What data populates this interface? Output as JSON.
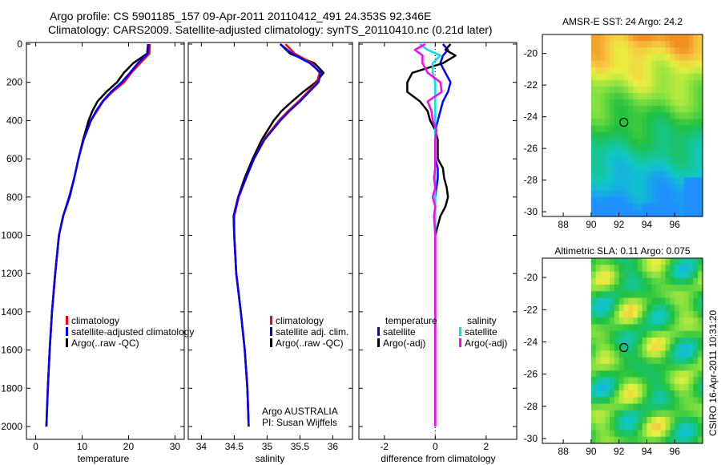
{
  "header": {
    "line1": "Argo profile: CS 5901185_157 09-Apr-2011 20110412_491 24.353S 92.346E",
    "line2": "Climatology: CARS2009. Satellite-adjusted climatology: synTS_20110410.nc (0.21d later)"
  },
  "colors": {
    "climatology": "#ff0000",
    "satellite": "#0000ff",
    "argo": "#000000",
    "salinity_satellite": "#00e5e5",
    "salinity_argo": "#ff00ff"
  },
  "chart_data": [
    {
      "type": "line",
      "xlabel": "temperature",
      "xlim": [
        -2,
        32
      ],
      "xticks": [
        "0",
        "10",
        "20",
        "30"
      ],
      "ylim": [
        2000,
        0
      ],
      "yticks": [
        "0",
        "200",
        "400",
        "600",
        "800",
        "1000",
        "1200",
        "1400",
        "1600",
        "1800",
        "2000"
      ],
      "legend": [
        "climatology",
        "satellite-adjusted climatology",
        "Argo(..raw -QC)"
      ],
      "depth": [
        0,
        50,
        100,
        150,
        200,
        250,
        300,
        350,
        400,
        500,
        600,
        700,
        800,
        900,
        1000,
        1200,
        1400,
        1600,
        1800,
        2000
      ],
      "series": [
        {
          "name": "climatology",
          "values": [
            24.6,
            24.5,
            22.5,
            20.6,
            19.0,
            16.5,
            14.5,
            13.2,
            11.9,
            10.3,
            9.2,
            8.3,
            7.2,
            5.9,
            5.0,
            4.2,
            3.5,
            3.0,
            2.6,
            2.3
          ]
        },
        {
          "name": "satellite-adjusted climatology",
          "values": [
            24.3,
            24.1,
            22.0,
            20.3,
            18.5,
            16.2,
            14.4,
            13.0,
            11.9,
            10.3,
            9.2,
            8.3,
            7.2,
            5.9,
            5.0,
            4.2,
            3.5,
            3.0,
            2.6,
            2.3
          ]
        },
        {
          "name": "Argo(..raw -QC)",
          "values": [
            24.2,
            24.0,
            21.0,
            19.0,
            17.5,
            15.2,
            13.3,
            12.2,
            11.4,
            10.2,
            9.2,
            8.3,
            7.3,
            5.9,
            5.0,
            4.2,
            3.5,
            3.0,
            2.6,
            2.3
          ]
        }
      ]
    },
    {
      "type": "line",
      "xlabel": "salinity",
      "xlim": [
        33.8,
        36.3
      ],
      "xticks": [
        "34",
        "34.5",
        "35",
        "35.5",
        "36"
      ],
      "ylim": [
        2000,
        0
      ],
      "legend": [
        "climatology",
        "satellite adj. clim.",
        "Argo(..raw -QC)"
      ],
      "annotation": [
        "Argo AUSTRALIA",
        "PI: Susan Wijffels"
      ],
      "depth": [
        0,
        50,
        100,
        150,
        200,
        250,
        300,
        350,
        400,
        500,
        600,
        700,
        800,
        900,
        1000,
        1200,
        1400,
        1600,
        1800,
        2000
      ],
      "series": [
        {
          "name": "climatology",
          "values": [
            35.28,
            35.42,
            35.68,
            35.8,
            35.76,
            35.62,
            35.48,
            35.32,
            35.18,
            34.95,
            34.8,
            34.68,
            34.57,
            34.5,
            34.5,
            34.53,
            34.6,
            34.66,
            34.7,
            34.72
          ]
        },
        {
          "name": "satellite adj. clim.",
          "values": [
            35.2,
            35.38,
            35.65,
            35.82,
            35.78,
            35.64,
            35.5,
            35.34,
            35.2,
            34.96,
            34.8,
            34.68,
            34.56,
            34.49,
            34.5,
            34.53,
            34.6,
            34.66,
            34.7,
            34.72
          ]
        },
        {
          "name": "Argo(..raw -QC)",
          "values": [
            35.2,
            35.35,
            35.72,
            35.86,
            35.74,
            35.55,
            35.38,
            35.22,
            35.1,
            34.92,
            34.78,
            34.66,
            34.56,
            34.49,
            34.5,
            34.53,
            34.6,
            34.66,
            34.7,
            34.72
          ]
        }
      ]
    },
    {
      "type": "line",
      "xlabel": "difference from climatology",
      "xlim": [
        -3,
        3.2
      ],
      "xticks": [
        "-2",
        "0",
        "2"
      ],
      "ylim": [
        2000,
        0
      ],
      "legend_groups": [
        {
          "title": "temperature",
          "items": [
            "satellite",
            "Argo(-adj)"
          ]
        },
        {
          "title": "salinity",
          "items": [
            "satellite",
            "Argo(-adj)"
          ]
        }
      ],
      "depth": [
        0,
        30,
        60,
        100,
        150,
        200,
        250,
        300,
        350,
        400,
        450,
        500,
        600,
        650,
        700,
        750,
        800,
        850,
        900,
        1000,
        1200,
        1400,
        1600,
        1800,
        2000
      ],
      "series": [
        {
          "name": "temperature satellite",
          "values": [
            0.3,
            0.5,
            0.3,
            0.2,
            0.4,
            0.6,
            0.5,
            0.3,
            0.2,
            0.1,
            0.0,
            0.0,
            0.0,
            0.1,
            0.1,
            0.05,
            0.0,
            0.0,
            0.0,
            0.0,
            0.0,
            0.0,
            0.0,
            0.0,
            0.0
          ]
        },
        {
          "name": "temperature Argo(-adj)",
          "values": [
            0.6,
            0.4,
            0.8,
            0.3,
            -0.9,
            -1.1,
            -1.1,
            -0.6,
            -0.3,
            -0.2,
            0.0,
            0.1,
            0.1,
            0.3,
            0.35,
            0.45,
            0.5,
            0.4,
            0.2,
            0.0,
            0.0,
            0.0,
            0.0,
            0.0,
            0.0
          ]
        },
        {
          "name": "salinity satellite",
          "values": [
            -0.6,
            -0.3,
            0.2,
            -0.1,
            -0.1,
            0.0,
            0.0,
            0.0,
            0.0,
            0.0,
            0.0,
            0.0,
            0.0,
            0.0,
            0.0,
            0.0,
            0.0,
            0.0,
            0.0,
            0.0,
            0.0,
            0.0,
            0.0,
            0.0,
            0.0
          ]
        },
        {
          "name": "salinity Argo(-adj)",
          "values": [
            -0.4,
            -0.8,
            -0.5,
            -0.5,
            -0.3,
            0.2,
            0.25,
            -0.3,
            -0.15,
            -0.1,
            0.05,
            0.0,
            0.0,
            0.0,
            -0.05,
            0.0,
            -0.1,
            0.0,
            -0.05,
            0.0,
            0.0,
            0.0,
            0.0,
            0.0,
            0.0
          ]
        }
      ]
    },
    {
      "type": "heatmap",
      "title": "AMSR-E SST: 24 Argo: 24.2",
      "xlim": [
        86.5,
        98
      ],
      "xticks": [
        "88",
        "90",
        "92",
        "94",
        "96"
      ],
      "ylim": [
        -30.3,
        -18.8
      ],
      "yticks": [
        "-20",
        "-22",
        "-24",
        "-26",
        "-28",
        "-30"
      ],
      "marker": {
        "lon": 92.35,
        "lat": -24.35
      }
    },
    {
      "type": "heatmap",
      "title": "Altimetric SLA: 0.11 Argo: 0.075",
      "xlim": [
        86.5,
        98
      ],
      "xticks": [
        "88",
        "90",
        "92",
        "94",
        "96"
      ],
      "ylim": [
        -30.3,
        -18.8
      ],
      "yticks": [
        "-20",
        "-22",
        "-24",
        "-26",
        "-28",
        "-30"
      ],
      "marker": {
        "lon": 92.35,
        "lat": -24.35
      }
    }
  ],
  "footer": {
    "credit": "CSIRO 16-Apr-2011 10:31:20"
  }
}
